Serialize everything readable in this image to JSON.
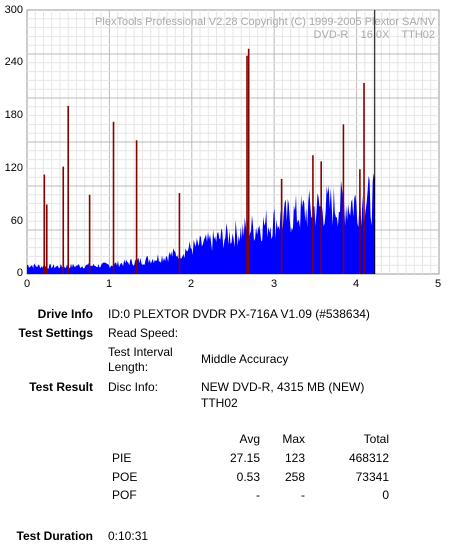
{
  "chart_data": {
    "type": "bar",
    "watermark_line1": "PlexTools Professional V2.28 Copyright (C) 1999-2005 Plextor SA/NV",
    "watermark_line2": "DVD-R    16.0X    TTH02",
    "xlim": [
      0,
      5
    ],
    "ylim": [
      0,
      300
    ],
    "x_ticks": [
      "0",
      "1",
      "2",
      "3",
      "4",
      "5"
    ],
    "y_ticks": [
      "0",
      "60",
      "120",
      "180",
      "240",
      "300"
    ],
    "end_marker_x": 4.22,
    "grid": true,
    "series": [
      {
        "color": "#0000ff",
        "x": [
          0.0,
          0.2,
          0.4,
          0.6,
          0.8,
          1.0,
          1.2,
          1.4,
          1.6,
          1.8,
          2.0,
          2.2,
          2.4,
          2.6,
          2.8,
          3.0,
          3.2,
          3.4,
          3.6,
          3.8,
          4.0,
          4.1,
          4.2
        ],
        "values": [
          12,
          10,
          10,
          11,
          11,
          12,
          15,
          18,
          22,
          27,
          35,
          42,
          50,
          57,
          64,
          70,
          78,
          84,
          90,
          93,
          96,
          98,
          100
        ]
      },
      {
        "color": "#880000",
        "x": [
          0.21,
          0.24,
          0.44,
          0.5,
          0.76,
          1.05,
          1.33,
          1.85,
          2.67,
          2.69,
          3.09,
          3.47,
          3.57,
          3.84,
          4.04,
          4.09
        ],
        "values": [
          113,
          79,
          122,
          191,
          90,
          173,
          152,
          92,
          248,
          256,
          108,
          135,
          128,
          170,
          119,
          217
        ]
      }
    ]
  },
  "info": {
    "drive_info_label": "Drive Info",
    "drive_info_value": "ID:0 PLEXTOR DVDR PX-716A V1.09 (#538634)",
    "test_settings_label": "Test Settings",
    "read_speed_label": "Read Speed:",
    "interval_label_1": "Test Interval",
    "interval_label_2": "Length:",
    "interval_value": "Middle Accuracy",
    "test_result_label": "Test Result",
    "disc_info_label": "Disc Info:",
    "disc_info_line1": "NEW DVD-R, 4315 MB (NEW)",
    "disc_info_line2": "TTH02",
    "duration_label": "Test Duration",
    "duration_value": "0:10:31"
  },
  "results": {
    "headers": [
      "Avg",
      "Max",
      "Total"
    ],
    "rows": [
      {
        "name": "PIE",
        "avg": "27.15",
        "max": "123",
        "total": "468312"
      },
      {
        "name": "POE",
        "avg": "0.53",
        "max": "258",
        "total": "73341"
      },
      {
        "name": "POF",
        "avg": "-",
        "max": "-",
        "total": "0"
      }
    ]
  }
}
